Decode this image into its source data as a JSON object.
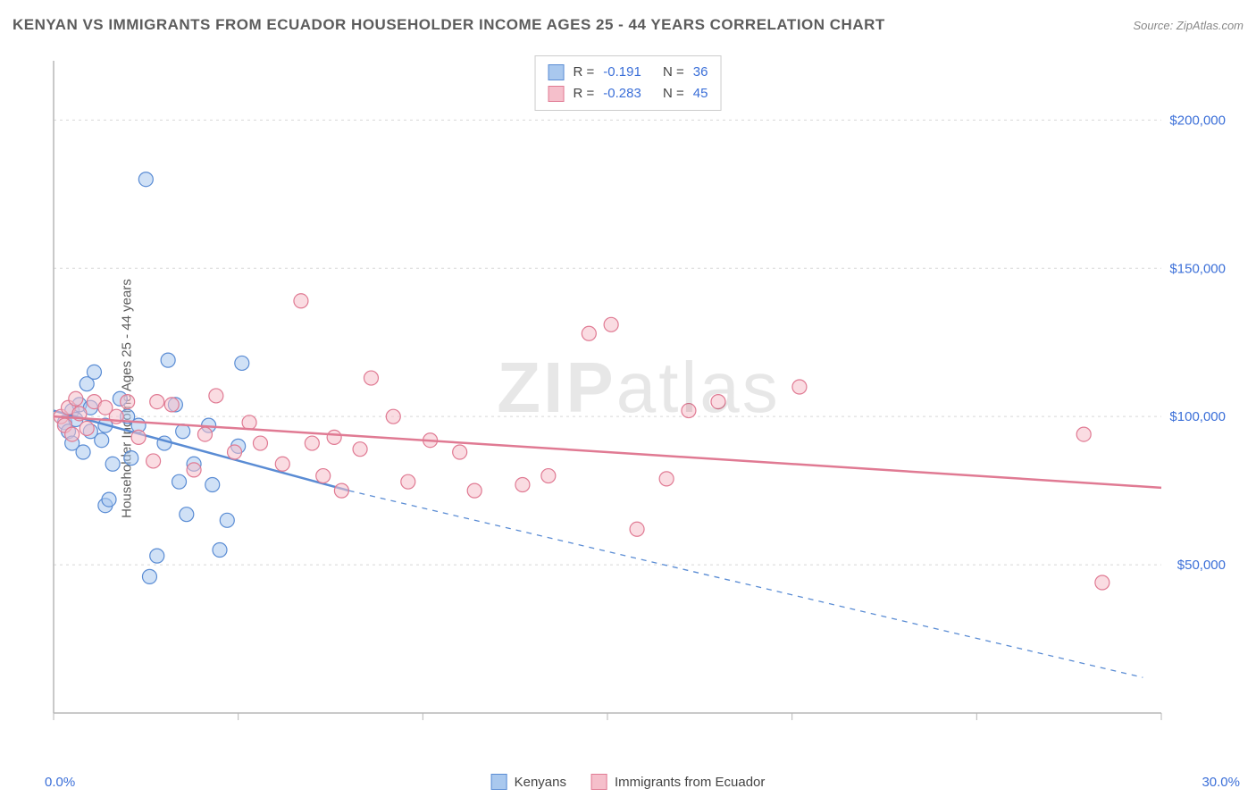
{
  "header": {
    "title": "KENYAN VS IMMIGRANTS FROM ECUADOR HOUSEHOLDER INCOME AGES 25 - 44 YEARS CORRELATION CHART",
    "source": "Source: ZipAtlas.com"
  },
  "ylabel": "Householder Income Ages 25 - 44 years",
  "watermark": {
    "bold": "ZIP",
    "light": "atlas"
  },
  "chart": {
    "type": "scatter",
    "xlim": [
      0,
      30
    ],
    "ylim": [
      0,
      220000
    ],
    "xticks": [
      0,
      5,
      10,
      15,
      20,
      25,
      30
    ],
    "yticks": [
      50000,
      100000,
      150000,
      200000
    ],
    "ytick_labels": [
      "$50,000",
      "$100,000",
      "$150,000",
      "$200,000"
    ],
    "xaxis_label_left": "0.0%",
    "xaxis_label_right": "30.0%",
    "grid_color": "#d8d8d8",
    "axis_color": "#b7b7b7",
    "tick_label_color": "#3b6fd8",
    "background": "#ffffff",
    "marker_radius": 8,
    "line_width": 2.5,
    "series": [
      {
        "name": "Kenyans",
        "fill": "#a9c8ee",
        "stroke": "#5a8cd4",
        "fill_opacity": 0.55,
        "points": [
          [
            0.3,
            98000
          ],
          [
            0.4,
            95000
          ],
          [
            0.5,
            102000
          ],
          [
            0.5,
            91000
          ],
          [
            0.6,
            99000
          ],
          [
            0.7,
            104000
          ],
          [
            0.8,
            88000
          ],
          [
            0.9,
            111000
          ],
          [
            1.0,
            95000
          ],
          [
            1.0,
            103000
          ],
          [
            1.1,
            115000
          ],
          [
            1.3,
            92000
          ],
          [
            1.4,
            97000
          ],
          [
            1.4,
            70000
          ],
          [
            1.5,
            72000
          ],
          [
            1.6,
            84000
          ],
          [
            1.8,
            106000
          ],
          [
            2.0,
            100000
          ],
          [
            2.1,
            86000
          ],
          [
            2.3,
            97000
          ],
          [
            2.5,
            180000
          ],
          [
            2.6,
            46000
          ],
          [
            2.8,
            53000
          ],
          [
            3.0,
            91000
          ],
          [
            3.1,
            119000
          ],
          [
            3.3,
            104000
          ],
          [
            3.4,
            78000
          ],
          [
            3.5,
            95000
          ],
          [
            3.6,
            67000
          ],
          [
            3.8,
            84000
          ],
          [
            4.2,
            97000
          ],
          [
            4.3,
            77000
          ],
          [
            4.5,
            55000
          ],
          [
            4.7,
            65000
          ],
          [
            5.0,
            90000
          ],
          [
            5.1,
            118000
          ]
        ],
        "trend": {
          "x1": 0,
          "y1": 102000,
          "x2": 8,
          "y2": 75000,
          "dash_from_x": 8,
          "dash_to_x": 29.5,
          "dash_y2": 12000
        }
      },
      {
        "name": "Immigrants from Ecuador",
        "fill": "#f5bfcb",
        "stroke": "#e07a93",
        "fill_opacity": 0.55,
        "points": [
          [
            0.2,
            100000
          ],
          [
            0.3,
            97000
          ],
          [
            0.4,
            103000
          ],
          [
            0.5,
            94000
          ],
          [
            0.6,
            106000
          ],
          [
            0.7,
            101000
          ],
          [
            0.9,
            96000
          ],
          [
            1.1,
            105000
          ],
          [
            1.4,
            103000
          ],
          [
            1.7,
            100000
          ],
          [
            2.0,
            105000
          ],
          [
            2.3,
            93000
          ],
          [
            2.7,
            85000
          ],
          [
            2.8,
            105000
          ],
          [
            3.2,
            104000
          ],
          [
            3.8,
            82000
          ],
          [
            4.1,
            94000
          ],
          [
            4.4,
            107000
          ],
          [
            4.9,
            88000
          ],
          [
            5.3,
            98000
          ],
          [
            5.6,
            91000
          ],
          [
            6.2,
            84000
          ],
          [
            6.7,
            139000
          ],
          [
            7.0,
            91000
          ],
          [
            7.3,
            80000
          ],
          [
            7.6,
            93000
          ],
          [
            7.8,
            75000
          ],
          [
            8.3,
            89000
          ],
          [
            8.6,
            113000
          ],
          [
            9.2,
            100000
          ],
          [
            9.6,
            78000
          ],
          [
            10.2,
            92000
          ],
          [
            11.0,
            88000
          ],
          [
            11.4,
            75000
          ],
          [
            12.7,
            77000
          ],
          [
            13.4,
            80000
          ],
          [
            14.5,
            128000
          ],
          [
            15.1,
            131000
          ],
          [
            15.8,
            62000
          ],
          [
            16.6,
            79000
          ],
          [
            17.2,
            102000
          ],
          [
            18.0,
            105000
          ],
          [
            20.2,
            110000
          ],
          [
            27.9,
            94000
          ],
          [
            28.4,
            44000
          ]
        ],
        "trend": {
          "x1": 0,
          "y1": 100000,
          "x2": 30,
          "y2": 76000
        }
      }
    ],
    "stats": [
      {
        "series_index": 0,
        "r": "-0.191",
        "n": "36"
      },
      {
        "series_index": 1,
        "r": "-0.283",
        "n": "45"
      }
    ],
    "stats_labels": {
      "r": "R =",
      "n": "N ="
    },
    "legend_labels": {
      "kenyans": "Kenyans",
      "ecuador": "Immigrants from Ecuador"
    }
  }
}
